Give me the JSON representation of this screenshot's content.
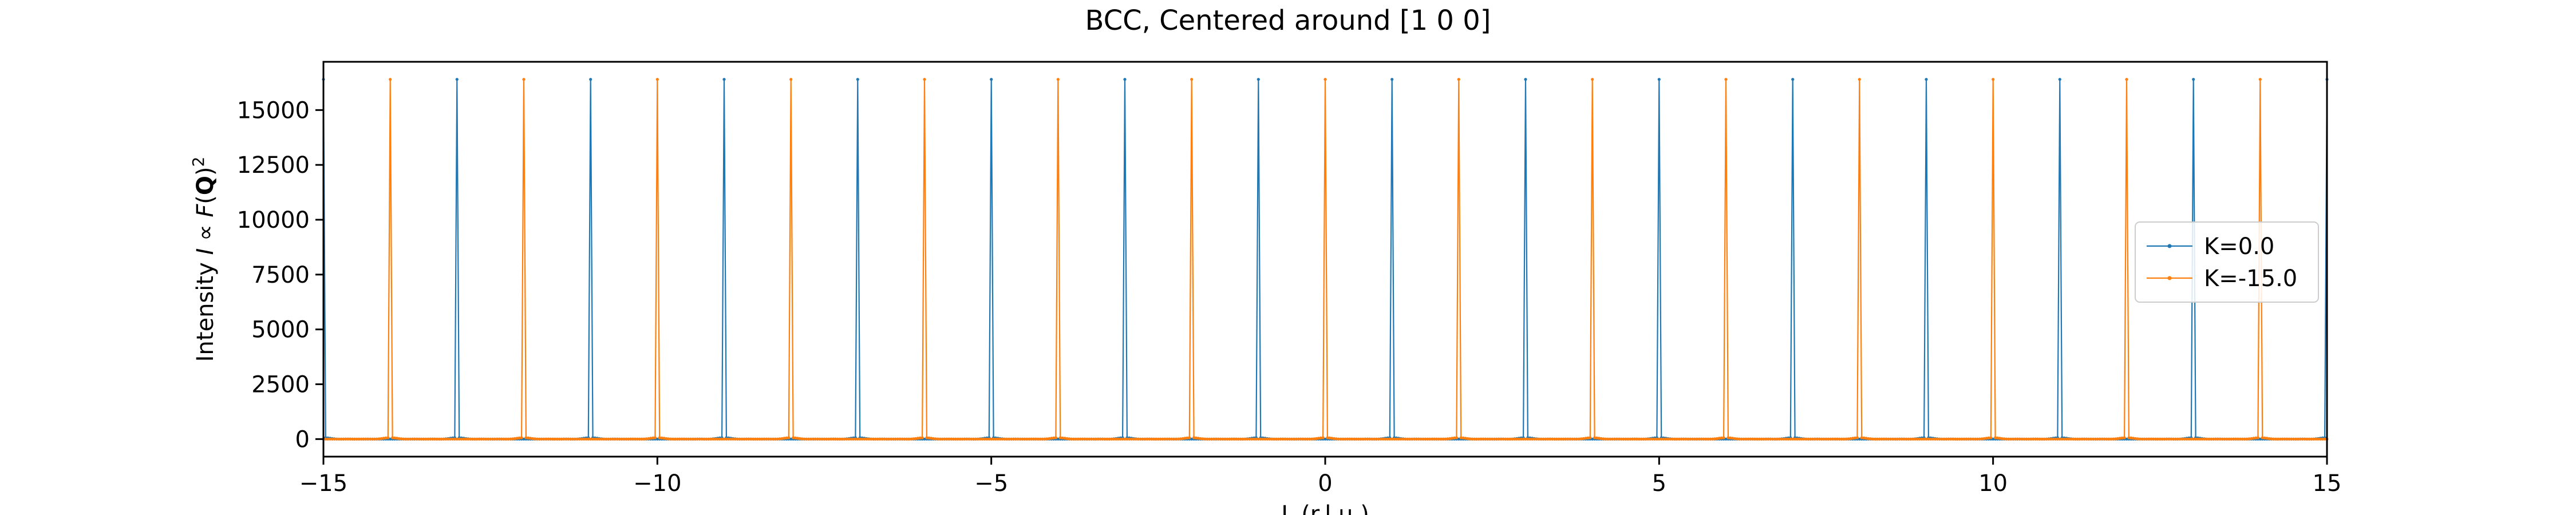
{
  "chart_data": {
    "type": "line",
    "title": "BCC, Centered around [1 0 0]",
    "xlabel": "L (r.l.u.)",
    "ylabel": "Intensity I ∝ F(Q)²",
    "xlim": [
      -15,
      15
    ],
    "ylim": [
      -800,
      17200
    ],
    "xticks": [
      -15,
      -10,
      -5,
      0,
      5,
      10,
      15
    ],
    "xtick_labels": [
      "−15",
      "−10",
      "−5",
      "0",
      "5",
      "10",
      "15"
    ],
    "yticks": [
      0,
      2500,
      5000,
      7500,
      10000,
      12500,
      15000
    ],
    "ytick_labels": [
      "0",
      "2500",
      "5000",
      "7500",
      "10000",
      "12500",
      "15000"
    ],
    "grid": false,
    "legend": "center-right",
    "peak_height": 16400,
    "series": [
      {
        "name": "K=0.0",
        "color": "#1f77b4",
        "peak_L": [
          -15,
          -13,
          -11,
          -9,
          -7,
          -5,
          -3,
          -1,
          1,
          3,
          5,
          7,
          9,
          11,
          13,
          15
        ]
      },
      {
        "name": "K=-15.0",
        "color": "#ff7f0e",
        "peak_L": [
          -14,
          -12,
          -10,
          -8,
          -6,
          -4,
          -2,
          0,
          2,
          4,
          6,
          8,
          10,
          12,
          14
        ]
      }
    ]
  }
}
